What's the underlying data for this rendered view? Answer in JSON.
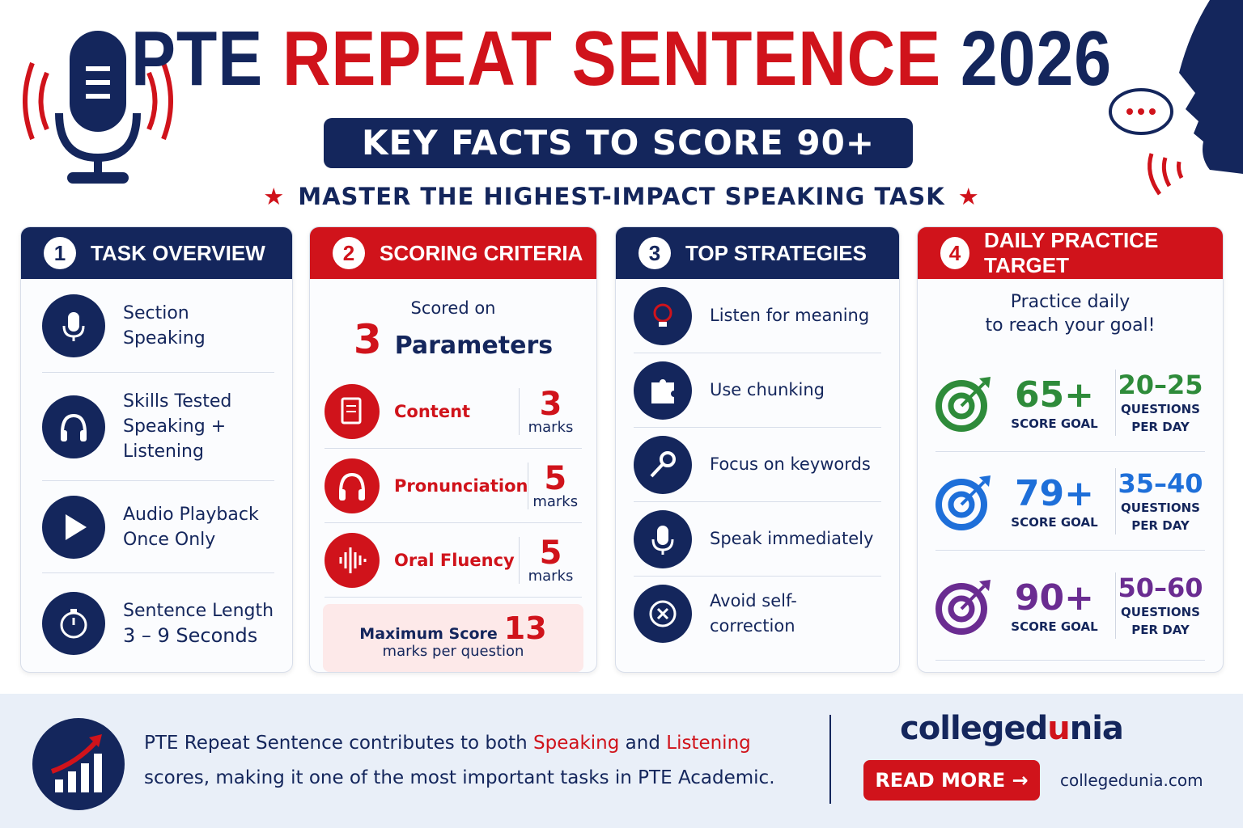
{
  "header": {
    "title": {
      "pre": "PTE",
      "main": "REPEAT SENTENCE",
      "post": "2026"
    },
    "subtitle": "KEY FACTS TO SCORE 90+",
    "tagline": "MASTER THE HIGHEST-IMPACT SPEAKING TASK"
  },
  "cards": [
    {
      "number": "1",
      "title": "TASK OVERVIEW",
      "items": [
        {
          "label": "Section",
          "value": "Speaking"
        },
        {
          "label": "Skills Tested",
          "value": "Speaking + Listening"
        },
        {
          "label": "Audio Playback",
          "value": "Once Only"
        },
        {
          "label": "Sentence Length",
          "value": "3 – 9 Seconds"
        }
      ]
    },
    {
      "number": "2",
      "title": "SCORING CRITERIA",
      "intro": "Scored on",
      "count": 3,
      "count_label": "Parameters",
      "criteria": [
        {
          "name": "Content",
          "marks": 3,
          "unit": "marks"
        },
        {
          "name": "Pronunciation",
          "marks": 5,
          "unit": "marks"
        },
        {
          "name": "Oral Fluency",
          "marks": 5,
          "unit": "marks"
        }
      ],
      "max": {
        "label": "Maximum Score",
        "value": 13,
        "note": "marks per question"
      }
    },
    {
      "number": "3",
      "title": "TOP STRATEGIES",
      "items": [
        "Listen for meaning",
        "Use chunking",
        "Focus on keywords",
        "Speak immediately",
        "Avoid self-correction"
      ]
    },
    {
      "number": "4",
      "title": "DAILY PRACTICE TARGET",
      "intro": [
        "Practice daily",
        "to reach your goal!"
      ],
      "targets": [
        {
          "score": "65+",
          "score_label": "SCORE GOAL",
          "range": "20–25",
          "range_label": "QUESTIONS PER DAY"
        },
        {
          "score": "79+",
          "score_label": "SCORE GOAL",
          "range": "35–40",
          "range_label": "QUESTIONS PER DAY"
        },
        {
          "score": "90+",
          "score_label": "SCORE GOAL",
          "range": "50–60",
          "range_label": "QUESTIONS PER DAY"
        }
      ]
    }
  ],
  "footer": {
    "text": {
      "a": "PTE Repeat Sentence contributes to both ",
      "speaking": "Speaking",
      "b": " and ",
      "listening": "Listening",
      "c": " scores, making it one of the most important tasks in PTE Academic."
    },
    "brand": {
      "a": "colleged",
      "u": "u",
      "b": "nia"
    },
    "button": "READ MORE",
    "url": "collegedunia.com"
  }
}
